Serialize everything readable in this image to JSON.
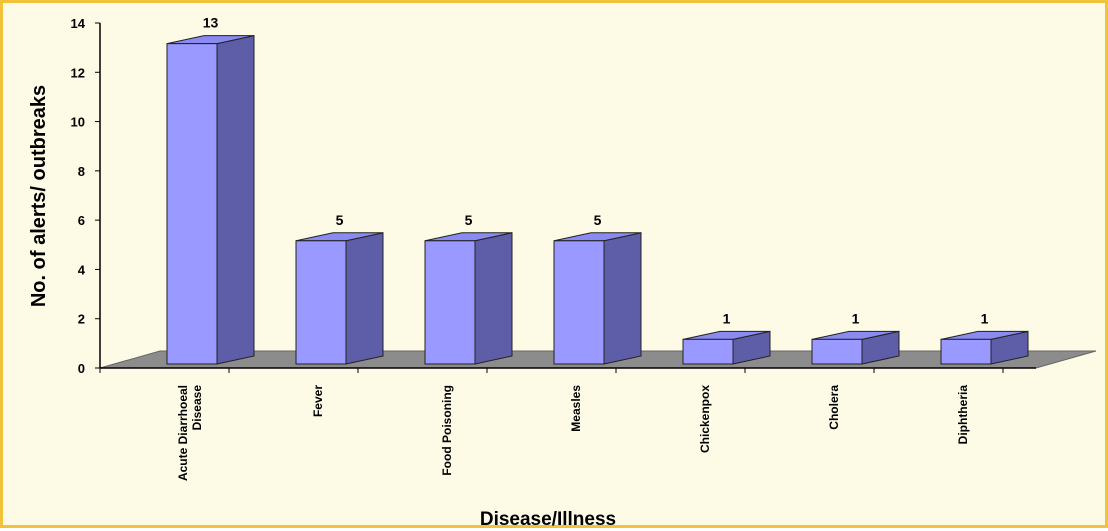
{
  "chart_data": {
    "type": "bar",
    "title": "",
    "xlabel": "Disease/Illness",
    "ylabel": "No. of alerts/ outbreaks",
    "ylim": [
      0,
      14
    ],
    "yticks": [
      0,
      2,
      4,
      6,
      8,
      10,
      12,
      14
    ],
    "categories": [
      [
        "Acute Diarrhoeal",
        "Disease"
      ],
      [
        "Fever"
      ],
      [
        "Food Poisoning"
      ],
      [
        "Measles"
      ],
      [
        "Chickenpox"
      ],
      [
        "Cholera"
      ],
      [
        "Diphtheria"
      ]
    ],
    "values": [
      13,
      5,
      5,
      5,
      1,
      1,
      1
    ],
    "grid": false,
    "legend": "none",
    "style": "3d-column"
  },
  "colors": {
    "bar_front": "#9999ff",
    "bar_side": "#5d5da8",
    "bar_top": "#8a8af0",
    "floor": "#8c8c8c",
    "background": "#fdfbe6",
    "frame_border": "#f2c23a"
  }
}
